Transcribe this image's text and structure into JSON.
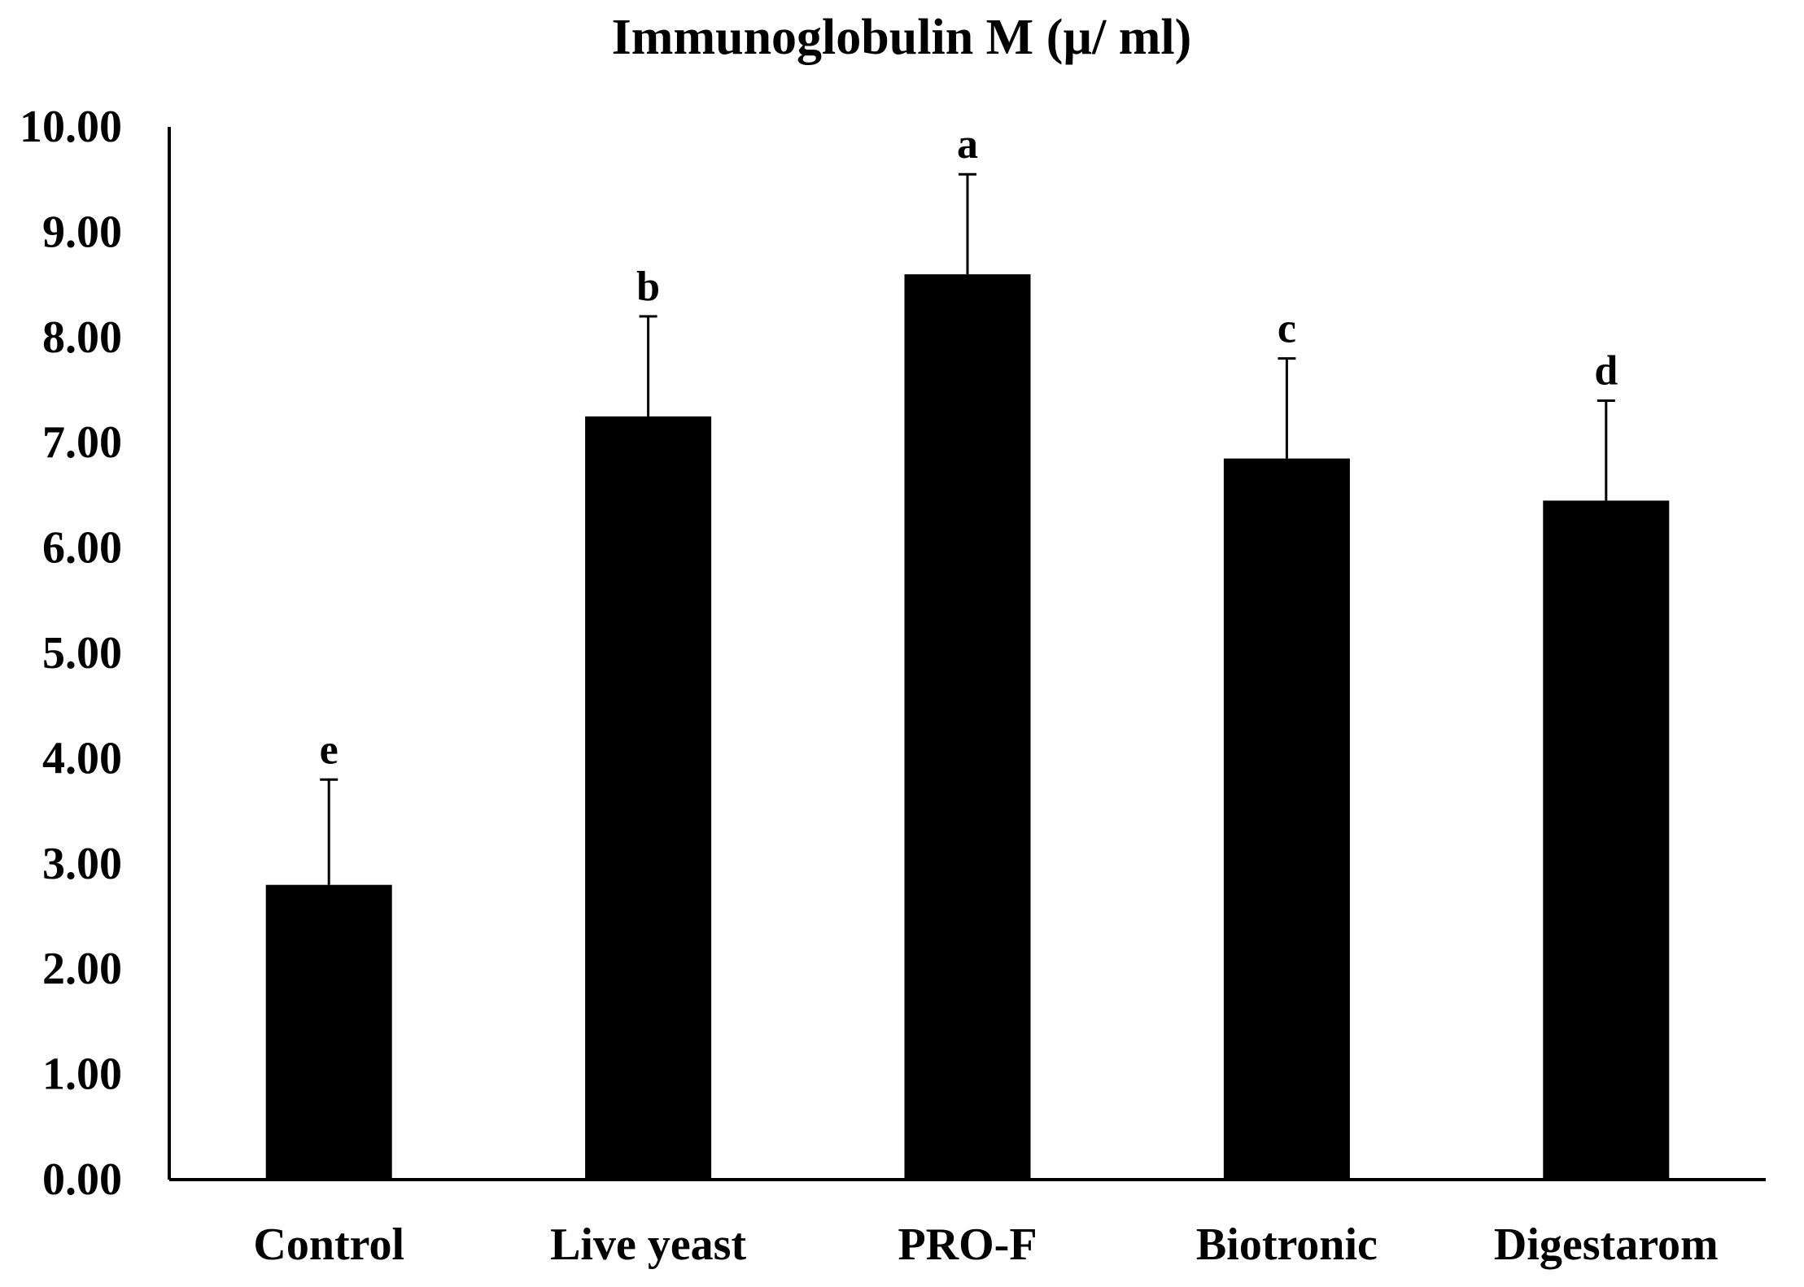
{
  "chart_data": {
    "type": "bar",
    "title": "Immunoglobulin  M (µ/ ml)",
    "xlabel": "",
    "ylabel": "",
    "ylim": [
      0,
      10
    ],
    "y_ticks": [
      "0.00",
      "1.00",
      "2.00",
      "3.00",
      "4.00",
      "5.00",
      "6.00",
      "7.00",
      "8.00",
      "9.00",
      "10.00"
    ],
    "categories": [
      "Control",
      "Live yeast",
      "PRO-F",
      "Biotronic",
      "Digestarom"
    ],
    "values": [
      2.8,
      7.25,
      8.6,
      6.85,
      6.45
    ],
    "error_plus": [
      1.0,
      0.95,
      0.95,
      0.95,
      0.95
    ],
    "significance_letters": [
      "e",
      "b",
      "a",
      "c",
      "d"
    ],
    "bar_color": "#000000",
    "grid": false,
    "legend": "none"
  }
}
